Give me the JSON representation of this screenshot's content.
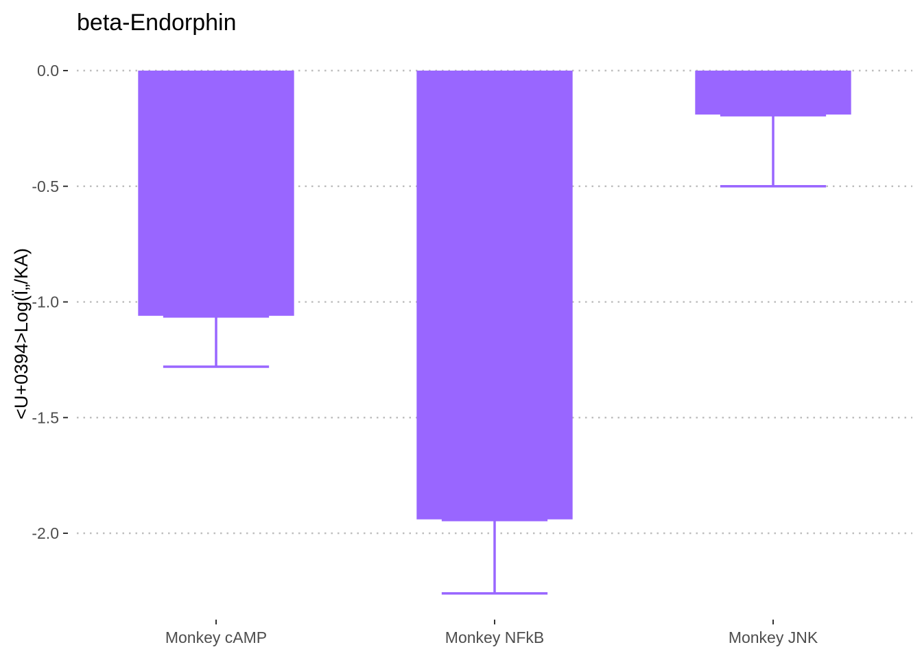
{
  "chart_data": {
    "type": "bar",
    "title": "beta-Endorphin",
    "xlabel": "",
    "ylabel": "<U+0394>Log(Ï„/KA)",
    "categories": [
      "Monkey cAMP",
      "Monkey NFkB",
      "Monkey JNK"
    ],
    "values": [
      -1.06,
      -1.94,
      -0.19
    ],
    "error_low": [
      -1.28,
      -2.26,
      -0.5
    ],
    "yticks": [
      0.0,
      -0.5,
      -1.0,
      -1.5,
      -2.0
    ],
    "ytick_labels": [
      "0.0",
      "-0.5",
      "-1.0",
      "-1.5",
      "-2.0"
    ],
    "ylim": [
      -2.35,
      0.05
    ],
    "grid": "horizontal dotted",
    "colors": {
      "bar": "#9966ff",
      "grid": "#bebebe",
      "tick_text": "#4d4d4d"
    }
  }
}
